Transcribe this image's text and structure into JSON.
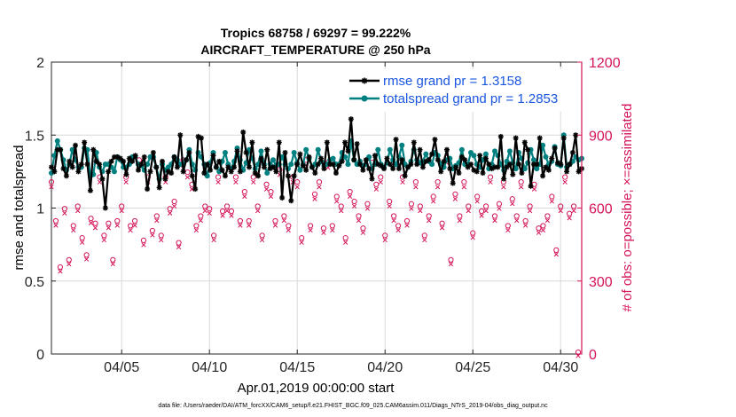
{
  "chart_data": {
    "type": "line",
    "title": "Tropics 68758 / 69297 = 99.222%",
    "subtitle": "AIRCRAFT_TEMPERATURE @ 250 hPa",
    "xlabel": "Apr.01,2019 00:00:00 start",
    "ylabel_left": "rmse and totalspread",
    "ylabel_right": "# of obs: o=possible; ×=assimilated",
    "footnote": "data file: /Users/raeder/DAI/ATM_forcXX/CAM6_setup/f.e21.FHIST_BGC.f09_025.CAM6assim.011/Diags_NTrS_2019-04/obs_diag_output.nc",
    "xlim": [
      1,
      31.2
    ],
    "ylim_left": [
      0,
      2
    ],
    "ylim_right": [
      0,
      1200
    ],
    "x_ticks": [
      5,
      10,
      15,
      20,
      25,
      30
    ],
    "x_tick_labels": [
      "04/05",
      "04/10",
      "04/15",
      "04/20",
      "04/25",
      "04/30"
    ],
    "y_left_ticks": [
      0,
      0.5,
      1,
      1.5,
      2
    ],
    "y_left_tick_labels": [
      "0",
      "0.5",
      "1",
      "1.5",
      "2"
    ],
    "y_right_ticks": [
      0,
      300,
      600,
      900,
      1200
    ],
    "y_right_tick_labels": [
      "0",
      "300",
      "600",
      "900",
      "1200"
    ],
    "grid": true,
    "legend_position": "top-right",
    "colors": {
      "rmse": "#000000",
      "spread": "#008080",
      "obs": "#d4145a",
      "legend_text": "#1a56e0",
      "grid": "#d9d9d9"
    },
    "series": [
      {
        "name": "rmse grand pr = 1.3158",
        "axis": "left",
        "marker": "asterisk",
        "values": [
          1.28,
          1.25,
          1.4,
          1.4,
          1.27,
          1.22,
          1.32,
          1.28,
          1.43,
          1.25,
          1.3,
          1.45,
          1.3,
          1.12,
          1.4,
          1.32,
          1.3,
          1.2,
          1.0,
          1.25,
          1.32,
          1.35,
          1.35,
          1.34,
          1.32,
          1.23,
          1.34,
          1.32,
          1.36,
          1.26,
          1.3,
          1.35,
          1.13,
          1.25,
          1.38,
          1.28,
          1.14,
          1.32,
          1.2,
          1.25,
          1.24,
          1.35,
          1.28,
          1.5,
          1.25,
          1.33,
          1.38,
          1.22,
          1.13,
          1.49,
          1.48,
          1.24,
          1.3,
          1.26,
          1.36,
          1.28,
          1.32,
          1.26,
          1.22,
          1.28,
          1.25,
          1.28,
          1.39,
          1.25,
          1.52,
          1.38,
          1.28,
          1.45,
          1.24,
          1.22,
          1.34,
          1.28,
          1.4,
          1.27,
          1.28,
          1.25,
          1.45,
          1.07,
          1.38,
          1.22,
          1.05,
          1.22,
          1.3,
          1.37,
          1.29,
          1.26,
          1.35,
          1.28,
          1.24,
          1.3,
          1.34,
          1.27,
          1.45,
          1.3,
          1.3,
          1.24,
          1.29,
          1.32,
          1.45,
          1.39,
          1.61,
          1.33,
          1.44,
          1.3,
          1.26,
          1.33,
          1.27,
          1.2,
          1.36,
          1.3,
          1.29,
          1.27,
          1.34,
          1.3,
          1.27,
          1.47,
          1.27,
          1.33,
          1.22,
          1.28,
          1.3,
          1.45,
          1.3,
          1.4,
          1.28,
          1.32,
          1.33,
          1.37,
          1.47,
          1.33,
          1.25,
          1.32,
          1.4,
          1.27,
          1.17,
          1.28,
          1.24,
          1.35,
          1.33,
          1.28,
          1.3,
          1.26,
          1.25,
          1.36,
          1.24,
          1.34,
          1.3,
          1.27,
          1.28,
          1.28,
          1.49,
          1.2,
          1.28,
          1.3,
          1.23,
          1.48,
          1.3,
          1.24,
          1.45,
          1.4,
          1.15,
          1.3,
          1.3,
          1.48,
          1.22,
          1.28,
          1.26,
          1.34,
          1.41,
          1.31,
          1.3,
          1.48,
          1.25,
          1.3,
          1.38,
          1.5,
          1.25,
          1.27
        ]
      },
      {
        "name": "totalspread grand pr = 1.2853",
        "axis": "left",
        "marker": "circle",
        "values": [
          1.24,
          1.36,
          1.46,
          1.4,
          1.33,
          1.26,
          1.3,
          1.4,
          1.33,
          1.28,
          1.28,
          1.41,
          1.4,
          1.22,
          1.23,
          1.38,
          1.28,
          1.25,
          1.3,
          1.3,
          1.28,
          1.25,
          1.35,
          1.33,
          1.28,
          1.28,
          1.3,
          1.35,
          1.35,
          1.3,
          1.29,
          1.26,
          1.3,
          1.35,
          1.35,
          1.28,
          1.2,
          1.3,
          1.26,
          1.28,
          1.3,
          1.35,
          1.33,
          1.3,
          1.3,
          1.33,
          1.4,
          1.3,
          1.26,
          1.38,
          1.35,
          1.3,
          1.22,
          1.31,
          1.38,
          1.28,
          1.25,
          1.32,
          1.38,
          1.3,
          1.27,
          1.32,
          1.41,
          1.33,
          1.26,
          1.31,
          1.4,
          1.34,
          1.27,
          1.3,
          1.39,
          1.3,
          1.24,
          1.3,
          1.33,
          1.29,
          1.3,
          1.35,
          1.3,
          1.27,
          1.3,
          1.38,
          1.31,
          1.26,
          1.3,
          1.4,
          1.34,
          1.28,
          1.3,
          1.4,
          1.32,
          1.29,
          1.3,
          1.33,
          1.34,
          1.3,
          1.3,
          1.38,
          1.35,
          1.3,
          1.46,
          1.33,
          1.3,
          1.32,
          1.29,
          1.3,
          1.35,
          1.27,
          1.3,
          1.4,
          1.3,
          1.28,
          1.31,
          1.4,
          1.33,
          1.3,
          1.35,
          1.43,
          1.3,
          1.28,
          1.32,
          1.4,
          1.33,
          1.31,
          1.32,
          1.37,
          1.32,
          1.3,
          1.38,
          1.36,
          1.3,
          1.28,
          1.33,
          1.34,
          1.27,
          1.29,
          1.31,
          1.4,
          1.3,
          1.3,
          1.38,
          1.36,
          1.3,
          1.28,
          1.33,
          1.37,
          1.27,
          1.3,
          1.39,
          1.36,
          1.3,
          1.26,
          1.32,
          1.39,
          1.31,
          1.27,
          1.38,
          1.34,
          1.27,
          1.31,
          1.4,
          1.33,
          1.27,
          1.3,
          1.43,
          1.35,
          1.3,
          1.32,
          1.42,
          1.3,
          1.29,
          1.5,
          1.28,
          1.3,
          1.32,
          1.35,
          1.33,
          1.34
        ]
      },
      {
        "name": "# of obs possible",
        "axis": "right",
        "marker": "circle-open",
        "x": [
          1,
          1.25,
          1.5,
          1.75,
          2,
          2.25,
          2.5,
          2.75,
          3,
          3.25,
          3.5,
          3.75,
          4,
          4.25,
          4.5,
          4.75,
          5,
          5.25,
          5.5,
          5.75,
          6,
          6.25,
          6.5,
          6.75,
          7,
          7.25,
          7.5,
          7.75,
          8,
          8.25,
          8.5,
          8.75,
          9,
          9.25,
          9.5,
          9.75,
          10,
          10.25,
          10.5,
          10.75,
          11,
          11.25,
          11.5,
          11.75,
          12,
          12.25,
          12.5,
          12.75,
          13,
          13.25,
          13.5,
          13.75,
          14,
          14.25,
          14.5,
          14.75,
          15,
          15.25,
          15.5,
          15.75,
          16,
          16.25,
          16.5,
          16.75,
          17,
          17.25,
          17.5,
          17.75,
          18,
          18.25,
          18.5,
          18.75,
          19,
          19.25,
          19.5,
          19.75,
          20,
          20.25,
          20.5,
          20.75,
          21,
          21.25,
          21.5,
          21.75,
          22,
          22.25,
          22.5,
          22.75,
          23,
          23.25,
          23.5,
          23.75,
          24,
          24.25,
          24.5,
          24.75,
          25,
          25.25,
          25.5,
          25.75,
          26,
          26.25,
          26.5,
          26.75,
          27,
          27.25,
          27.5,
          27.75,
          28,
          28.25,
          28.5,
          28.75,
          29,
          29.25,
          29.5,
          29.75,
          30,
          30.25,
          30.5,
          30.75,
          31
        ],
        "values": [
          700,
          540,
          350,
          590,
          380,
          520,
          600,
          470,
          400,
          550,
          530,
          720,
          480,
          530,
          380,
          540,
          600,
          720,
          520,
          540,
          790,
          460,
          720,
          500,
          560,
          480,
          720,
          590,
          620,
          450,
          790,
          740,
          690,
          520,
          560,
          600,
          590,
          480,
          720,
          580,
          600,
          580,
          720,
          540,
          660,
          540,
          720,
          600,
          480,
          690,
          660,
          540,
          750,
          560,
          520,
          720,
          700,
          470,
          790,
          520,
          650,
          700,
          510,
          780,
          520,
          640,
          600,
          470,
          660,
          620,
          560,
          510,
          610,
          780,
          690,
          720,
          480,
          620,
          560,
          520,
          720,
          540,
          610,
          700,
          600,
          480,
          560,
          640,
          700,
          530,
          800,
          380,
          650,
          560,
          700,
          600,
          490,
          640,
          580,
          600,
          720,
          560,
          610,
          700,
          520,
          630,
          560,
          700,
          540,
          600,
          690,
          510,
          520,
          560,
          640,
          420,
          600,
          720,
          570,
          600,
          0
        ]
      },
      {
        "name": "# of obs assimilated",
        "axis": "right",
        "marker": "x",
        "x": [
          1,
          1.25,
          1.5,
          1.75,
          2,
          2.25,
          2.5,
          2.75,
          3,
          3.25,
          3.5,
          3.75,
          4,
          4.25,
          4.5,
          4.75,
          5,
          5.25,
          5.5,
          5.75,
          6,
          6.25,
          6.5,
          6.75,
          7,
          7.25,
          7.5,
          7.75,
          8,
          8.25,
          8.5,
          8.75,
          9,
          9.25,
          9.5,
          9.75,
          10,
          10.25,
          10.5,
          10.75,
          11,
          11.25,
          11.5,
          11.75,
          12,
          12.25,
          12.5,
          12.75,
          13,
          13.25,
          13.5,
          13.75,
          14,
          14.25,
          14.5,
          14.75,
          15,
          15.25,
          15.5,
          15.75,
          16,
          16.25,
          16.5,
          16.75,
          17,
          17.25,
          17.5,
          17.75,
          18,
          18.25,
          18.5,
          18.75,
          19,
          19.25,
          19.5,
          19.75,
          20,
          20.25,
          20.5,
          20.75,
          21,
          21.25,
          21.5,
          21.75,
          22,
          22.25,
          22.5,
          22.75,
          23,
          23.25,
          23.5,
          23.75,
          24,
          24.25,
          24.5,
          24.75,
          25,
          25.25,
          25.5,
          25.75,
          26,
          26.25,
          26.5,
          26.75,
          27,
          27.25,
          27.5,
          27.75,
          28,
          28.25,
          28.5,
          28.75,
          29,
          29.25,
          29.5,
          29.75,
          30,
          30.25,
          30.5,
          30.75,
          31
        ],
        "values": [
          694,
          536,
          347,
          586,
          377,
          516,
          596,
          466,
          397,
          546,
          526,
          714,
          476,
          526,
          377,
          536,
          596,
          714,
          516,
          536,
          784,
          456,
          714,
          496,
          556,
          476,
          714,
          586,
          615,
          447,
          784,
          734,
          685,
          516,
          556,
          596,
          586,
          476,
          714,
          576,
          596,
          576,
          714,
          536,
          655,
          536,
          714,
          596,
          476,
          685,
          655,
          536,
          744,
          556,
          516,
          714,
          694,
          466,
          784,
          516,
          645,
          694,
          506,
          774,
          516,
          635,
          596,
          466,
          655,
          615,
          556,
          506,
          605,
          774,
          685,
          714,
          476,
          615,
          556,
          516,
          714,
          536,
          605,
          694,
          596,
          476,
          556,
          635,
          694,
          526,
          794,
          377,
          645,
          556,
          694,
          596,
          486,
          635,
          576,
          596,
          714,
          556,
          605,
          694,
          516,
          625,
          556,
          694,
          536,
          596,
          685,
          506,
          516,
          556,
          635,
          417,
          596,
          714,
          566,
          596,
          0
        ]
      }
    ]
  }
}
